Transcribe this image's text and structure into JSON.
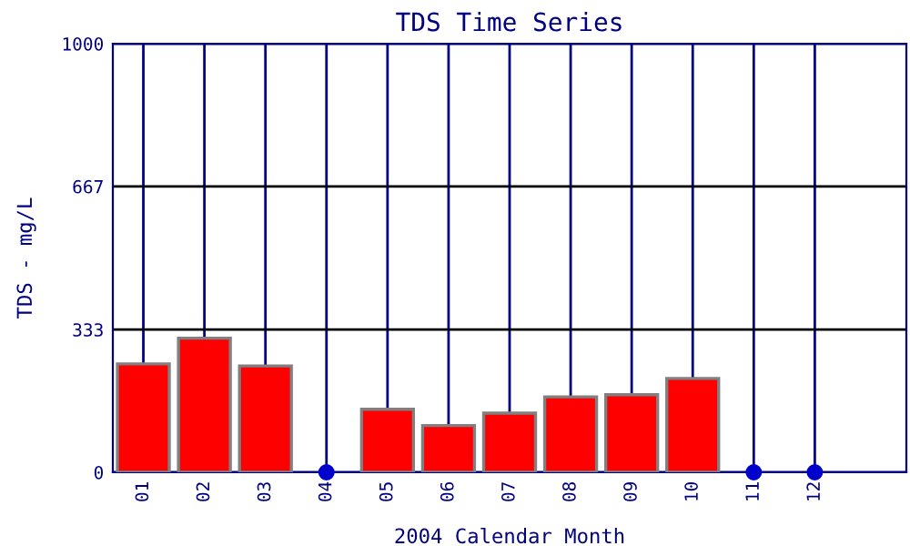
{
  "chart_data": {
    "type": "bar",
    "title": "TDS Time Series",
    "xlabel": "2004 Calendar Month",
    "ylabel": "TDS - mg/L",
    "categories": [
      "01",
      "02",
      "03",
      "04",
      "05",
      "06",
      "07",
      "08",
      "09",
      "10",
      "11",
      "12"
    ],
    "series": [
      {
        "color": "#ff0000",
        "values": [
          253,
          313,
          248,
          null,
          147,
          109,
          138,
          176,
          181,
          219,
          null,
          null
        ]
      },
      {
        "type": "scatter",
        "color": "#0000cc",
        "marker": "circle",
        "x": [
          "04",
          "11",
          "12"
        ],
        "values": [
          0,
          0,
          0
        ]
      }
    ],
    "ylim": [
      0,
      1000
    ],
    "yticks": [
      0,
      333,
      667,
      1000
    ],
    "grid": true
  }
}
